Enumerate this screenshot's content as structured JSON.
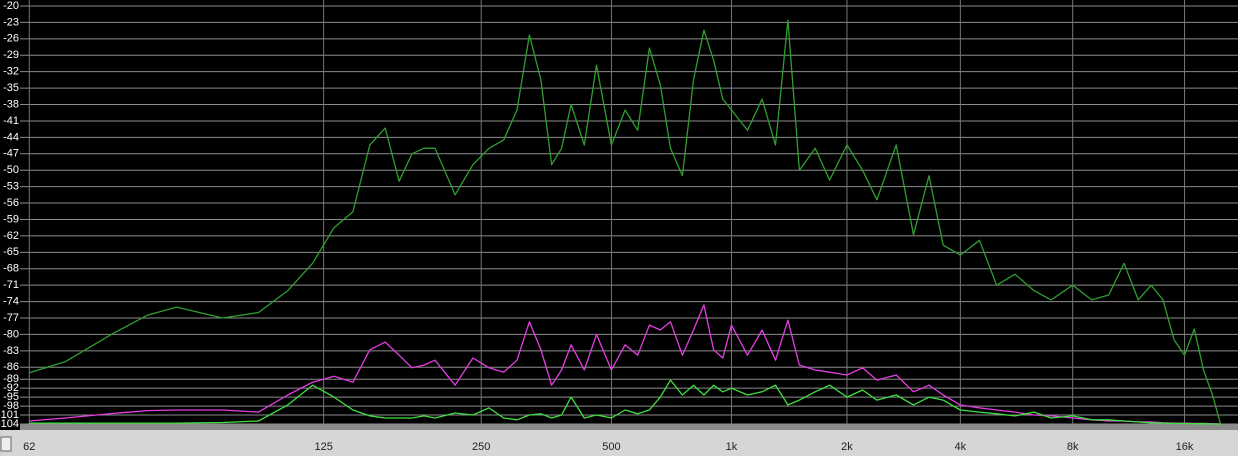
{
  "chart_data": {
    "type": "line",
    "xscale": "log",
    "x": [
      62,
      65,
      70,
      75,
      80,
      90,
      100,
      110,
      120,
      130,
      140,
      150,
      160,
      170,
      180,
      190,
      200,
      220,
      240,
      260,
      280,
      300,
      320,
      340,
      360,
      380,
      400,
      430,
      460,
      500,
      540,
      580,
      620,
      660,
      700,
      750,
      800,
      850,
      900,
      950,
      1000,
      1100,
      1200,
      1300,
      1400,
      1500,
      1650,
      1800,
      2000,
      2200,
      2400,
      2700,
      3000,
      3300,
      3600,
      4000,
      4500,
      5000,
      5600,
      6300,
      7000,
      8000,
      9000,
      10000,
      11000,
      12000,
      13000,
      14000,
      15000,
      16000,
      17000,
      18000,
      19000,
      20000
    ],
    "series": [
      {
        "color": "#2f9e2f",
        "values": [
          -87,
          -85,
          -80,
          -76.5,
          -75,
          -77,
          -76,
          -72,
          -67,
          -60.5,
          -57.6,
          -45.4,
          -42.3,
          -52,
          -47,
          -46,
          -46,
          -54.5,
          -49,
          -46,
          -44.5,
          -39,
          -25.3,
          -33.5,
          -49,
          -46,
          -38,
          -45.4,
          -30.8,
          -45.4,
          -39,
          -42.7,
          -27.7,
          -34.4,
          -46,
          -51,
          -33.5,
          -24.4,
          -29.9,
          -37,
          -39,
          -42.7,
          -37,
          -45.4,
          -22.6,
          -50,
          -46,
          -51.8,
          -45.4,
          -50,
          -55.4,
          -45.4,
          -61.8,
          -51,
          -63.7,
          -65.5,
          -62.8,
          -71,
          -69,
          -72,
          -73.7,
          -71,
          -73.7,
          -72.8,
          -67,
          -73.7,
          -71,
          -73.7,
          -81,
          -83.8,
          -79,
          -86.5,
          -94,
          -104
        ]
      },
      {
        "color": "#e33fe3",
        "values": [
          -103,
          -102,
          -100.5,
          -99.5,
          -99.3,
          -99.3,
          -100,
          -94.3,
          -90,
          -88,
          -90,
          -82.8,
          -81.4,
          -83.8,
          -86.1,
          -85.6,
          -84.7,
          -91,
          -84.3,
          -86.1,
          -86.9,
          -84.7,
          -77.7,
          -82.8,
          -91,
          -86.5,
          -81.9,
          -86.5,
          -80,
          -86.5,
          -81.9,
          -83.8,
          -78.3,
          -79.2,
          -77.7,
          -83.8,
          -79.2,
          -74.6,
          -82.8,
          -84.3,
          -78.3,
          -83.8,
          -79.2,
          -84.7,
          -77.4,
          -85.6,
          -86.5,
          -86.9,
          -87.6,
          -86.1,
          -89.3,
          -87.6,
          -93.2,
          -91,
          -94.3,
          -97.6,
          -98.6,
          -99.3,
          -100,
          -101,
          -101.3,
          -102,
          -102.6,
          -103,
          -103,
          -103.3,
          -103.3,
          -103.6,
          -103.7,
          -103.7,
          -103.8,
          -103.8,
          -103.9,
          -104
        ]
      },
      {
        "color": "#40e040",
        "values": [
          -103.7,
          -103.7,
          -103.7,
          -103.7,
          -103.7,
          -103.5,
          -103,
          -97.6,
          -91,
          -95,
          -99.3,
          -101.3,
          -102,
          -102,
          -102,
          -101.3,
          -102,
          -100.3,
          -101,
          -98.6,
          -102,
          -102.6,
          -101,
          -100.6,
          -102,
          -101,
          -95,
          -102,
          -101,
          -102,
          -99.3,
          -100.6,
          -99.3,
          -95,
          -89.3,
          -94.3,
          -91,
          -94.3,
          -91,
          -93.2,
          -92,
          -94.3,
          -93.2,
          -91,
          -97.6,
          -96,
          -93.2,
          -91,
          -95,
          -92.6,
          -96,
          -94.3,
          -97.6,
          -95,
          -96,
          -99.3,
          -100,
          -100.6,
          -101.3,
          -100,
          -102,
          -101.3,
          -102.6,
          -102.6,
          -103,
          -103.3,
          -103.6,
          -103.7,
          -103.8,
          -103.8,
          -103.9,
          -103.9,
          -104,
          -104
        ]
      }
    ],
    "xlim": [
      60,
      22300
    ],
    "xticks": [
      62,
      125,
      250,
      500,
      {
        "value": 1000,
        "label": "1k"
      },
      {
        "value": 2000,
        "label": "2k"
      },
      {
        "value": 4000,
        "label": "4k"
      },
      {
        "value": 8000,
        "label": "8k"
      },
      {
        "value": 16000,
        "label": "16k"
      }
    ],
    "ylim": [
      -20,
      -104
    ],
    "yticks": [
      -20,
      -23,
      -26,
      -29,
      -32,
      -35,
      -38,
      -41,
      -44,
      -47,
      -50,
      -53,
      -56,
      -59,
      -62,
      -65,
      -68,
      -71,
      -74,
      -77,
      -80,
      -83,
      -86,
      -89,
      -92,
      -95,
      -98,
      -101,
      -104
    ],
    "grid": true
  }
}
